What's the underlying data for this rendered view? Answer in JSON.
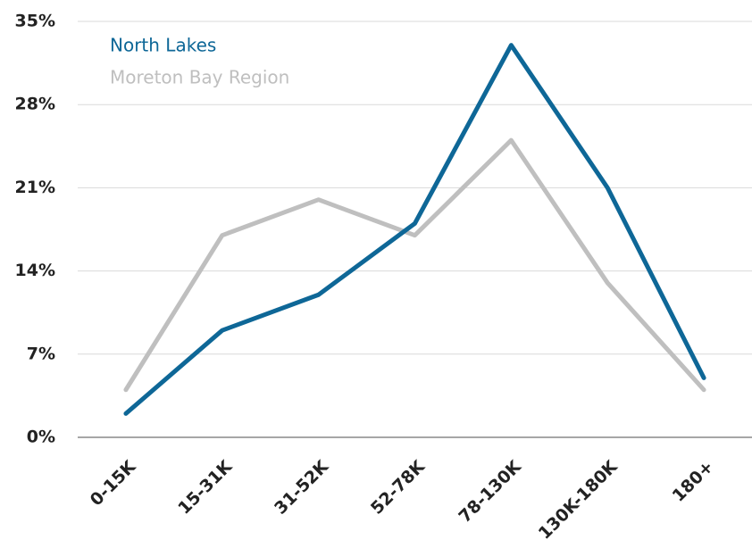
{
  "chart_data": {
    "type": "line",
    "categories": [
      "0-15K",
      "15-31K",
      "31-52K",
      "52-78K",
      "78-130K",
      "130K-180K",
      "180+"
    ],
    "series": [
      {
        "name": "North Lakes",
        "color": "#0e6797",
        "values": [
          2,
          9,
          12,
          18,
          33,
          21,
          5
        ]
      },
      {
        "name": "Moreton Bay Region",
        "color": "#bfbfbf",
        "values": [
          4,
          17,
          20,
          17,
          25,
          13,
          4
        ]
      }
    ],
    "ylim": [
      0,
      35
    ],
    "yticks": [
      {
        "value": 0,
        "label": "0%"
      },
      {
        "value": 7,
        "label": "7%"
      },
      {
        "value": 14,
        "label": "14%"
      },
      {
        "value": 21,
        "label": "21%"
      },
      {
        "value": 28,
        "label": "28%"
      },
      {
        "value": 35,
        "label": "35%"
      }
    ],
    "grid": true,
    "legend": "top-left"
  }
}
